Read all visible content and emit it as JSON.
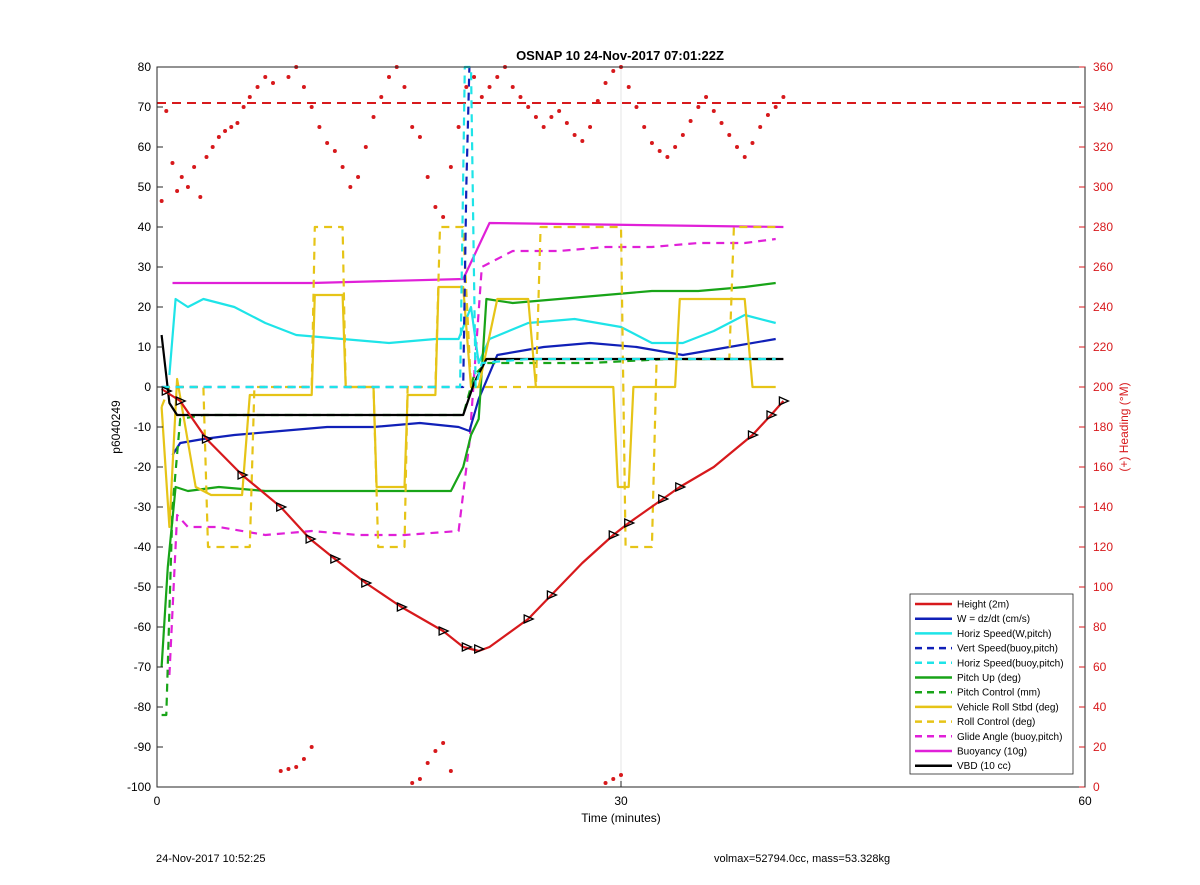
{
  "chart_data": {
    "type": "line",
    "title": "OSNAP 10 24-Nov-2017 07:01:22Z",
    "xlabel": "Time (minutes)",
    "ylabel": "p6040249",
    "ylabel_right": "(+) Heading (°M)",
    "xlim": [
      0,
      60
    ],
    "ylim": [
      -100,
      80
    ],
    "ylim_right": [
      0,
      360
    ],
    "x_ticks": [
      "0",
      "30",
      "60"
    ],
    "y_ticks": [
      "80",
      "70",
      "60",
      "50",
      "40",
      "30",
      "20",
      "10",
      "0",
      "-10",
      "-20",
      "-30",
      "-40",
      "-50",
      "-60",
      "-70",
      "-80",
      "-90",
      "-100"
    ],
    "y_ticks_right": [
      "360",
      "340",
      "320",
      "300",
      "280",
      "260",
      "240",
      "220",
      "200",
      "180",
      "160",
      "140",
      "120",
      "100",
      "80",
      "60",
      "40",
      "20",
      "0"
    ],
    "grid": "x-only",
    "legend_position": "bottom-right",
    "colors": {
      "height": "#d7191c",
      "w": "#1020b8",
      "horiz": "#1ee4e8",
      "pitch": "#18a418",
      "roll": "#e6c417",
      "glide": "#e020d8",
      "buoy": "#e020d8",
      "vbd": "#000000"
    },
    "series": [
      {
        "name": "Height (2m)",
        "color": "#d7191c",
        "dash": "solid",
        "x": [
          0.3,
          1.5,
          3.2,
          5.5,
          8.0,
          9.9,
          11.5,
          13.5,
          15.8,
          18.5,
          19.8,
          20.8,
          21.5,
          24.0,
          25.5,
          27.5,
          29.5,
          30.5,
          32.7,
          33.8,
          36.0,
          38.5,
          39.7,
          40.5
        ],
        "y": [
          -0.5,
          -3.5,
          -13,
          -22,
          -30,
          -38,
          -43,
          -49,
          -55,
          -61,
          -65,
          -66,
          -65,
          -58,
          -52,
          -44,
          -37,
          -34,
          -28,
          -25,
          -20,
          -12,
          -7,
          -3.5
        ]
      },
      {
        "name": "W = dz/dt (cm/s)",
        "color": "#1020b8",
        "dash": "solid",
        "x": [
          1,
          1.5,
          3,
          5,
          8,
          11,
          14,
          17,
          19.5,
          20.2,
          20.8,
          22,
          25,
          28,
          31,
          34,
          37,
          40
        ],
        "y": [
          -17,
          -14,
          -13,
          -12,
          -11,
          -10,
          -10,
          -9,
          -10,
          -11,
          -3,
          8,
          10,
          11,
          10,
          8,
          10,
          12
        ]
      },
      {
        "name": "Horiz Speed(W,pitch)",
        "color": "#1ee4e8",
        "dash": "solid",
        "x": [
          0.8,
          1.2,
          2,
          3,
          4,
          5,
          7,
          9,
          12,
          15,
          18,
          19.5,
          20.3,
          20.8,
          21.5,
          24,
          27,
          30,
          32,
          34,
          36,
          38,
          40
        ],
        "y": [
          3,
          22,
          20,
          22,
          21,
          20,
          16,
          13,
          12,
          11,
          12,
          12,
          20,
          6,
          12,
          16,
          17,
          15,
          11,
          11,
          14,
          18,
          16
        ]
      },
      {
        "name": "Vert Speed(buoy,pitch)",
        "color": "#1020b8",
        "dash": "dashed",
        "x": [
          0.3,
          19.8,
          20.0,
          20.2
        ],
        "y": [
          0,
          0,
          50,
          80
        ]
      },
      {
        "name": "Horiz Speed(buoy,pitch)",
        "color": "#1ee4e8",
        "dash": "dashed",
        "x": [
          0.3,
          19.6,
          19.9,
          20.3,
          20.6,
          21,
          24,
          30,
          36,
          40
        ],
        "y": [
          0,
          0,
          80,
          80,
          0,
          6,
          7,
          7,
          7,
          7
        ]
      },
      {
        "name": "Pitch Up (deg)",
        "color": "#18a418",
        "dash": "solid",
        "x": [
          0.3,
          0.7,
          1.2,
          2,
          4,
          7,
          10,
          13,
          16,
          19,
          19.8,
          20.3,
          20.8,
          21.3,
          23,
          26,
          29,
          32,
          35,
          38,
          40
        ],
        "y": [
          -70,
          -45,
          -25,
          -26,
          -25,
          -26,
          -26,
          -26,
          -26,
          -26,
          -20,
          -12,
          -8,
          22,
          21,
          22,
          23,
          24,
          24,
          25,
          26
        ]
      },
      {
        "name": "Pitch Control (mm)",
        "color": "#18a418",
        "dash": "dashed",
        "x": [
          0.3,
          0.6,
          1.0,
          1.5,
          3,
          6,
          10,
          14,
          18,
          19.8,
          20.5,
          21.3,
          23,
          28,
          33,
          40
        ],
        "y": [
          -82,
          -82,
          -30,
          -8,
          -7,
          -7,
          -7,
          -7,
          -7,
          -7,
          3,
          6,
          6,
          6,
          7,
          7
        ]
      },
      {
        "name": "Vehicle Roll Stbd (deg)",
        "color": "#e6c417",
        "dash": "solid",
        "x": [
          0.3,
          0.8,
          1.3,
          2.5,
          3.5,
          5.5,
          6,
          10,
          10.2,
          12,
          12.2,
          14,
          14.2,
          16,
          16.2,
          18,
          18.2,
          19.8,
          20.3,
          20.8,
          22,
          24,
          24.5,
          27,
          29.5,
          29.8,
          30.5,
          30.8,
          33.5,
          33.8,
          38,
          38.5,
          40
        ],
        "y": [
          -5,
          -35,
          2,
          -25,
          -27,
          -27,
          -2,
          -2,
          23,
          23,
          0,
          0,
          -25,
          -25,
          -2,
          -2,
          25,
          25,
          0,
          0,
          22,
          22,
          0,
          0,
          0,
          -25,
          -25,
          0,
          0,
          22,
          22,
          0,
          0
        ]
      },
      {
        "name": "Roll Control (deg)",
        "color": "#e6c417",
        "dash": "dashed",
        "x": [
          0.3,
          0.8,
          3,
          3.3,
          6,
          6.3,
          10,
          10.2,
          12,
          12.2,
          14,
          14.3,
          16,
          16.2,
          18,
          18.3,
          19.8,
          20.3,
          24.5,
          24.8,
          30,
          30.3,
          32,
          32.3,
          37,
          37.3,
          40
        ],
        "y": [
          -5,
          0,
          0,
          -40,
          -40,
          0,
          0,
          40,
          40,
          0,
          0,
          -40,
          -40,
          0,
          0,
          40,
          40,
          0,
          0,
          40,
          40,
          -40,
          -40,
          7,
          7,
          40,
          40
        ]
      },
      {
        "name": "Glide Angle (buoy,pitch)",
        "color": "#e020d8",
        "dash": "dashed",
        "x": [
          0.8,
          1.3,
          2,
          4,
          7,
          10,
          13,
          16,
          19.5,
          20.2,
          21,
          23,
          26,
          29,
          32,
          35,
          38,
          40
        ],
        "y": [
          -72,
          -32,
          -35,
          -35,
          -37,
          -36,
          -37,
          -37,
          -36,
          -14,
          30,
          34,
          34,
          35,
          35,
          36,
          36,
          37
        ]
      },
      {
        "name": "Buoyancy (10g)",
        "color": "#e020d8",
        "dash": "solid",
        "x": [
          1,
          10,
          19.8,
          21.5,
          40.5
        ],
        "y": [
          26,
          26,
          27,
          41,
          40
        ]
      },
      {
        "name": "VBD (10 cc)",
        "color": "#000000",
        "dash": "solid",
        "x": [
          0.3,
          0.8,
          1.3,
          10,
          19.8,
          20.5,
          21.3,
          40.5
        ],
        "y": [
          13,
          -4,
          -7,
          -7,
          -7,
          1,
          7,
          7
        ]
      }
    ],
    "heading_points": {
      "name": "Heading",
      "color": "#d7191c",
      "axis": "right",
      "x": [
        0.3,
        0.6,
        1.0,
        1.3,
        1.6,
        2.0,
        2.4,
        2.8,
        3.2,
        3.6,
        4.0,
        4.4,
        4.8,
        5.2,
        5.6,
        6.0,
        6.5,
        7.0,
        7.5,
        8.5,
        9.0,
        9.5,
        10.0,
        10.5,
        11.0,
        11.5,
        12.0,
        12.5,
        13.0,
        13.5,
        14.0,
        14.5,
        15.0,
        15.5,
        16.0,
        16.5,
        17.0,
        17.5,
        18.0,
        18.5,
        19.0,
        19.5,
        20.0,
        20.5,
        21.0,
        21.5,
        22.0,
        22.5,
        23.0,
        23.5,
        24.0,
        24.5,
        25.0,
        25.5,
        26.0,
        26.5,
        27.0,
        27.5,
        28.0,
        28.5,
        29.0,
        29.5,
        30.0,
        30.5,
        31.0,
        31.5,
        32.0,
        32.5,
        33.0,
        33.5,
        34.0,
        34.5,
        35.0,
        35.5,
        36.0,
        36.5,
        37.0,
        37.5,
        38.0,
        38.5,
        39.0,
        39.5,
        40.0,
        40.5,
        8.0,
        8.5,
        9.0,
        9.5,
        10.0,
        16.5,
        17.0,
        17.5,
        18.0,
        18.5,
        19.0,
        29.0,
        29.5,
        30.0
      ],
      "y": [
        293,
        338,
        312,
        298,
        305,
        300,
        310,
        295,
        315,
        320,
        325,
        328,
        330,
        332,
        340,
        345,
        350,
        355,
        352,
        355,
        360,
        350,
        340,
        330,
        322,
        318,
        310,
        300,
        305,
        320,
        335,
        345,
        355,
        360,
        350,
        330,
        325,
        305,
        290,
        285,
        310,
        330,
        350,
        355,
        345,
        350,
        355,
        360,
        350,
        345,
        340,
        335,
        330,
        335,
        338,
        332,
        326,
        323,
        330,
        343,
        352,
        358,
        360,
        350,
        340,
        330,
        322,
        318,
        315,
        320,
        326,
        333,
        340,
        345,
        338,
        332,
        326,
        320,
        315,
        322,
        330,
        336,
        340,
        345,
        8,
        9,
        10,
        14,
        20,
        2,
        4,
        12,
        18,
        22,
        8,
        2,
        4,
        6
      ]
    },
    "markers": {
      "name": "Height markers",
      "shape": "triangle",
      "color": "#000000",
      "x": [
        0.6,
        1.5,
        3.2,
        5.5,
        8.0,
        9.9,
        11.5,
        13.5,
        15.8,
        18.5,
        20.0,
        20.8,
        24.0,
        25.5,
        29.5,
        30.5,
        32.7,
        33.8,
        38.5,
        39.7,
        40.5
      ],
      "y": [
        -1,
        -3.5,
        -13,
        -22,
        -30,
        -38,
        -43,
        -49,
        -55,
        -61,
        -65,
        -65.5,
        -58,
        -52,
        -37,
        -34,
        -28,
        -25,
        -12,
        -7,
        -3.5
      ]
    }
  },
  "footer": {
    "timestamp": "24-Nov-2017 10:52:25",
    "stats": "volmax=52794.0cc, mass=53.328kg"
  }
}
